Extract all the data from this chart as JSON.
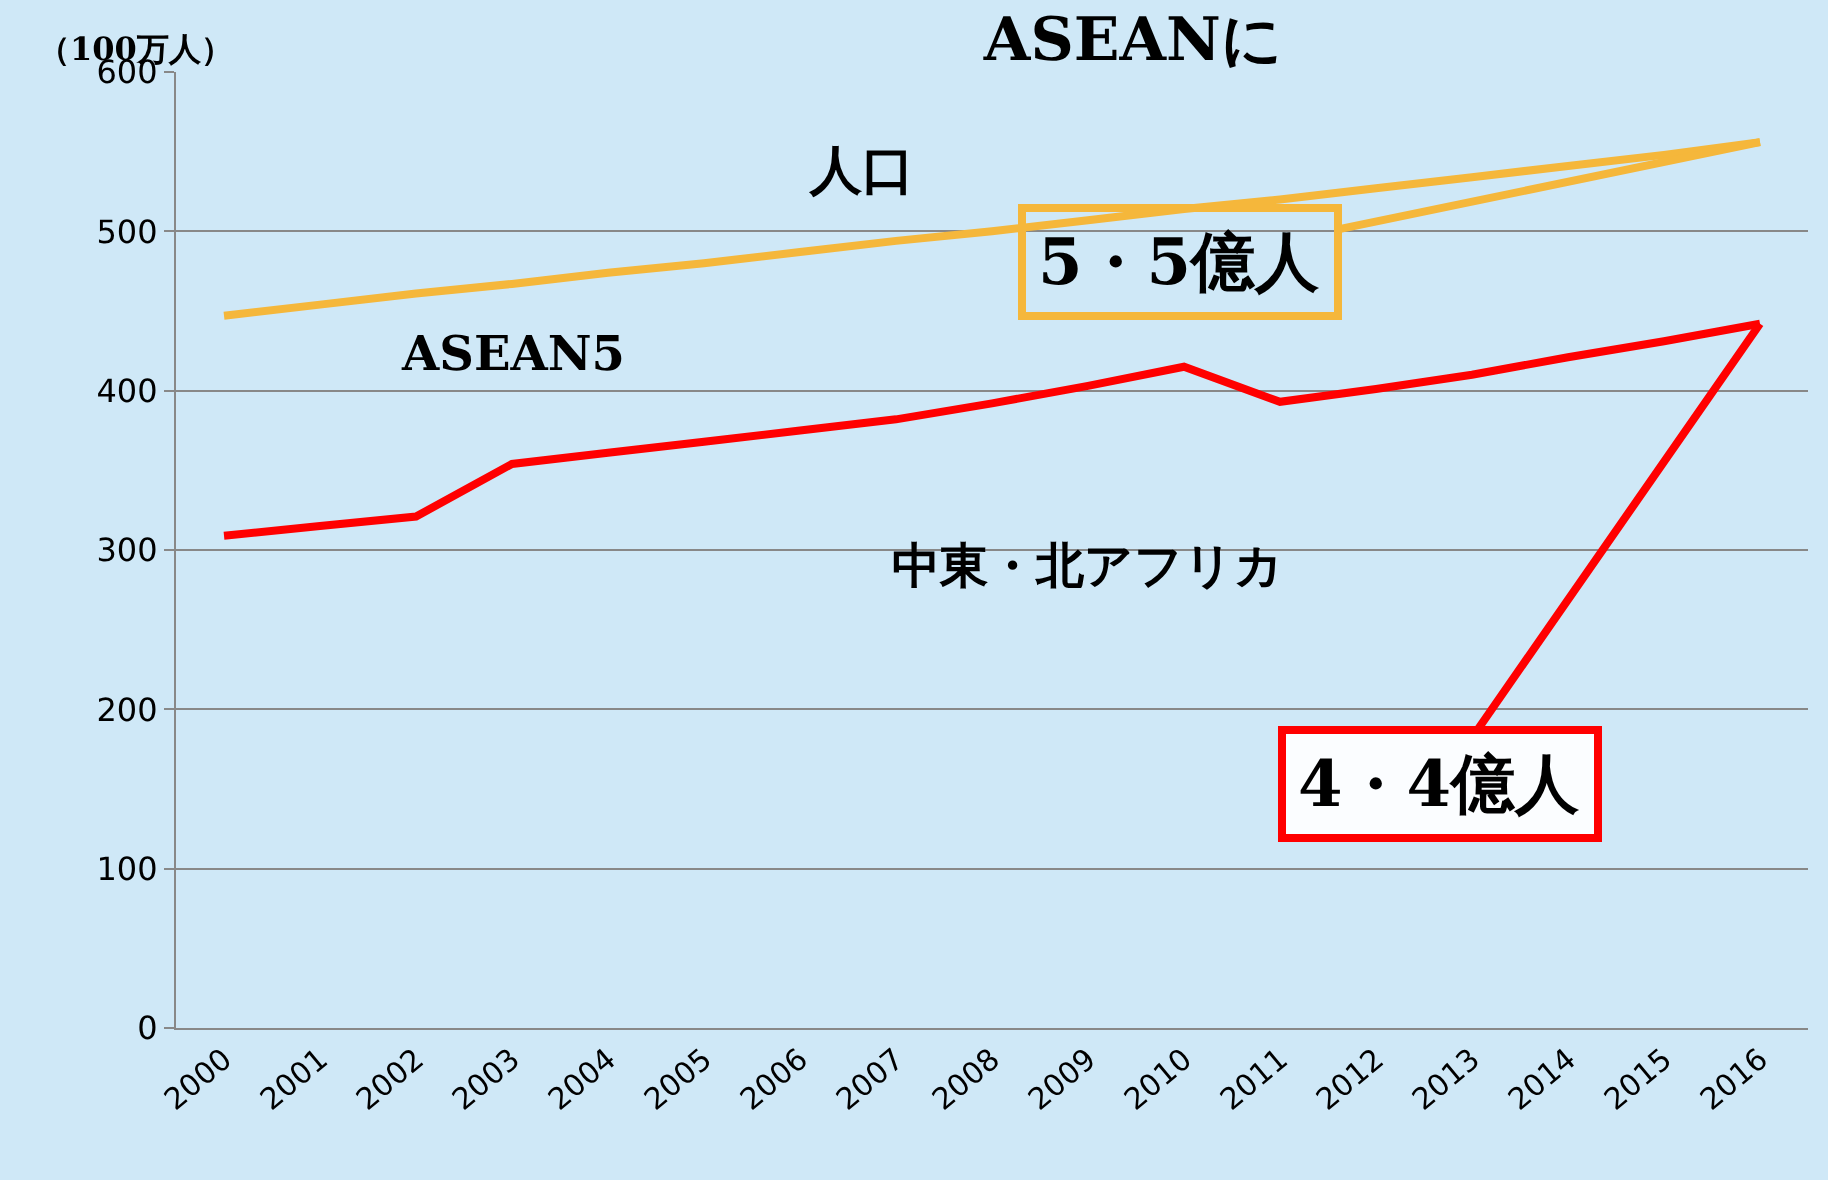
{
  "chart_data": {
    "type": "line",
    "title": "ASEANに",
    "ylabel": "（100万人）",
    "categories": [
      "2000",
      "2001",
      "2002",
      "2003",
      "2004",
      "2005",
      "2006",
      "2007",
      "2008",
      "2009",
      "2010",
      "2011",
      "2012",
      "2013",
      "2014",
      "2015",
      "2016"
    ],
    "series": [
      {
        "name": "ASEAN5",
        "color": "#f5b73b",
        "values": [
          447,
          454,
          461,
          467,
          474,
          480,
          487,
          494,
          500,
          507,
          514,
          520,
          527,
          534,
          541,
          548,
          556
        ]
      },
      {
        "name": "中東・北アフリカ",
        "color": "#ff0000",
        "values": [
          309,
          315,
          321,
          354,
          361,
          368,
          375,
          382,
          392,
          403,
          415,
          393,
          401,
          410,
          421,
          431,
          442
        ]
      }
    ],
    "ylim": [
      0,
      600
    ],
    "yticks": [
      0,
      100,
      200,
      300,
      400,
      500,
      600
    ],
    "grid": "y",
    "legend": false,
    "marker": "none",
    "line_style": "solid",
    "annotations": [
      "人口",
      {
        "text": "5・5億人",
        "x": "2016",
        "y": 556
      },
      {
        "text": "4・4億人",
        "x": "2016",
        "y": 442
      }
    ]
  }
}
